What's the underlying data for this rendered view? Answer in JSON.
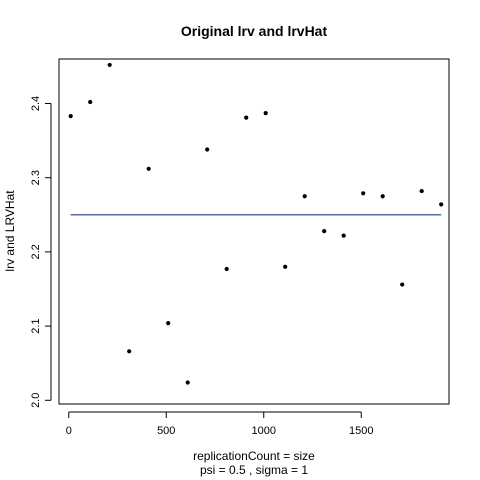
{
  "chart_data": {
    "type": "scatter",
    "title": "Original lrv and lrvHat",
    "xlabel": "replicationCount = size",
    "xsublabel": "psi =  0.5 , sigma =  1",
    "ylabel": "lrv and LRVHat",
    "xlim": [
      -50,
      1950
    ],
    "ylim": [
      1.995,
      2.46
    ],
    "x_ticks": [
      0,
      500,
      1000,
      1500
    ],
    "y_ticks": [
      2.0,
      2.1,
      2.2,
      2.3,
      2.4
    ],
    "x_tick_labels": [
      "0",
      "500",
      "1000",
      "1500"
    ],
    "y_tick_labels": [
      "2.0",
      "2.1",
      "2.2",
      "2.3",
      "2.4"
    ],
    "grid": false,
    "series": [
      {
        "kind": "points",
        "x": [
          10,
          110,
          210,
          310,
          410,
          510,
          610,
          710,
          810,
          910,
          1010,
          1110,
          1210,
          1310,
          1410,
          1510,
          1610,
          1710,
          1810,
          1910
        ],
        "y": [
          2.383,
          2.402,
          2.452,
          2.066,
          2.312,
          2.104,
          2.024,
          2.338,
          2.177,
          2.381,
          2.387,
          2.18,
          2.275,
          2.228,
          2.222,
          2.279,
          2.275,
          2.156,
          2.282,
          2.264
        ]
      },
      {
        "kind": "hline",
        "y": 2.25,
        "x_range": [
          10,
          1910
        ],
        "color": "#1f3a8a"
      }
    ]
  }
}
